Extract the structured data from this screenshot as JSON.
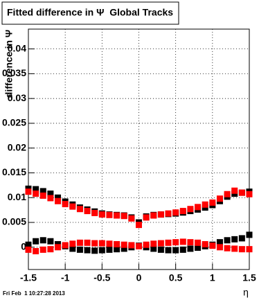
{
  "chart_data": {
    "type": "scatter",
    "title": "Fitted difference in Ψ  Global Tracks",
    "y_label": "difference in Ψ",
    "x_label": "η",
    "footer": "Fri Feb  1 10:27:28 2013",
    "x": [
      -1.5,
      -1.4,
      -1.3,
      -1.2,
      -1.1,
      -1.0,
      -0.9,
      -0.8,
      -0.7,
      -0.6,
      -0.5,
      -0.4,
      -0.3,
      -0.2,
      -0.1,
      0,
      0.1,
      0.2,
      0.3,
      0.4,
      0.5,
      0.6,
      0.7,
      0.8,
      0.9,
      1.0,
      1.1,
      1.2,
      1.3,
      1.4,
      1.5
    ],
    "series": [
      {
        "color": "#000000",
        "values": [
          0.0118,
          0.0117,
          0.0113,
          0.0108,
          0.01,
          0.0092,
          0.0086,
          0.008,
          0.0076,
          0.0072,
          0.0068,
          0.0066,
          0.0065,
          0.0064,
          0.006,
          0.005,
          0.0062,
          0.0065,
          0.0066,
          0.0067,
          0.0068,
          0.007,
          0.0073,
          0.0076,
          0.008,
          0.0085,
          0.0093,
          0.0102,
          0.0108,
          0.011,
          0.0112
        ]
      },
      {
        "color": "#ff0000",
        "values": [
          0.0112,
          0.0108,
          0.0104,
          0.0099,
          0.0093,
          0.0087,
          0.0082,
          0.0077,
          0.0073,
          0.0069,
          0.0066,
          0.0065,
          0.0064,
          0.0063,
          0.0058,
          0.0045,
          0.006,
          0.0064,
          0.0066,
          0.0068,
          0.007,
          0.0073,
          0.0077,
          0.0081,
          0.0086,
          0.009,
          0.0098,
          0.0107,
          0.0114,
          0.011,
          0.0107
        ]
      },
      {
        "color": "#000000",
        "values": [
          0.0005,
          0.0012,
          0.0014,
          0.0012,
          0.0006,
          0.0002,
          -0.0003,
          -0.0005,
          -0.0006,
          -0.0007,
          -0.0006,
          -0.0005,
          -0.0004,
          -0.0003,
          0.0,
          0.0003,
          0.0,
          -0.0003,
          -0.0005,
          -0.0006,
          -0.0006,
          -0.0005,
          -0.0003,
          -0.0001,
          0.0002,
          0.0005,
          0.001,
          0.0014,
          0.0016,
          0.0018,
          0.0025
        ]
      },
      {
        "color": "#ff0000",
        "values": [
          -0.0005,
          -0.0008,
          -0.0005,
          -0.0004,
          0.0,
          0.0004,
          0.0007,
          0.0009,
          0.0009,
          0.0008,
          0.0008,
          0.0007,
          0.0006,
          0.0005,
          0.0004,
          0.0002,
          0.0005,
          0.0007,
          0.0008,
          0.0009,
          0.001,
          0.0011,
          0.001,
          0.0009,
          0.0006,
          0.0003,
          0.0,
          -0.0002,
          -0.0003,
          -0.0004,
          -0.0004
        ]
      }
    ],
    "xlim": [
      -1.5,
      1.5
    ],
    "ylim": [
      -0.0045,
      0.044
    ],
    "xticks": [
      -1.5,
      -1,
      -0.5,
      0,
      0.5,
      1,
      1.5
    ],
    "yticks": [
      0,
      0.005,
      0.01,
      0.015,
      0.02,
      0.025,
      0.03,
      0.035,
      0.04
    ],
    "grid": true
  }
}
